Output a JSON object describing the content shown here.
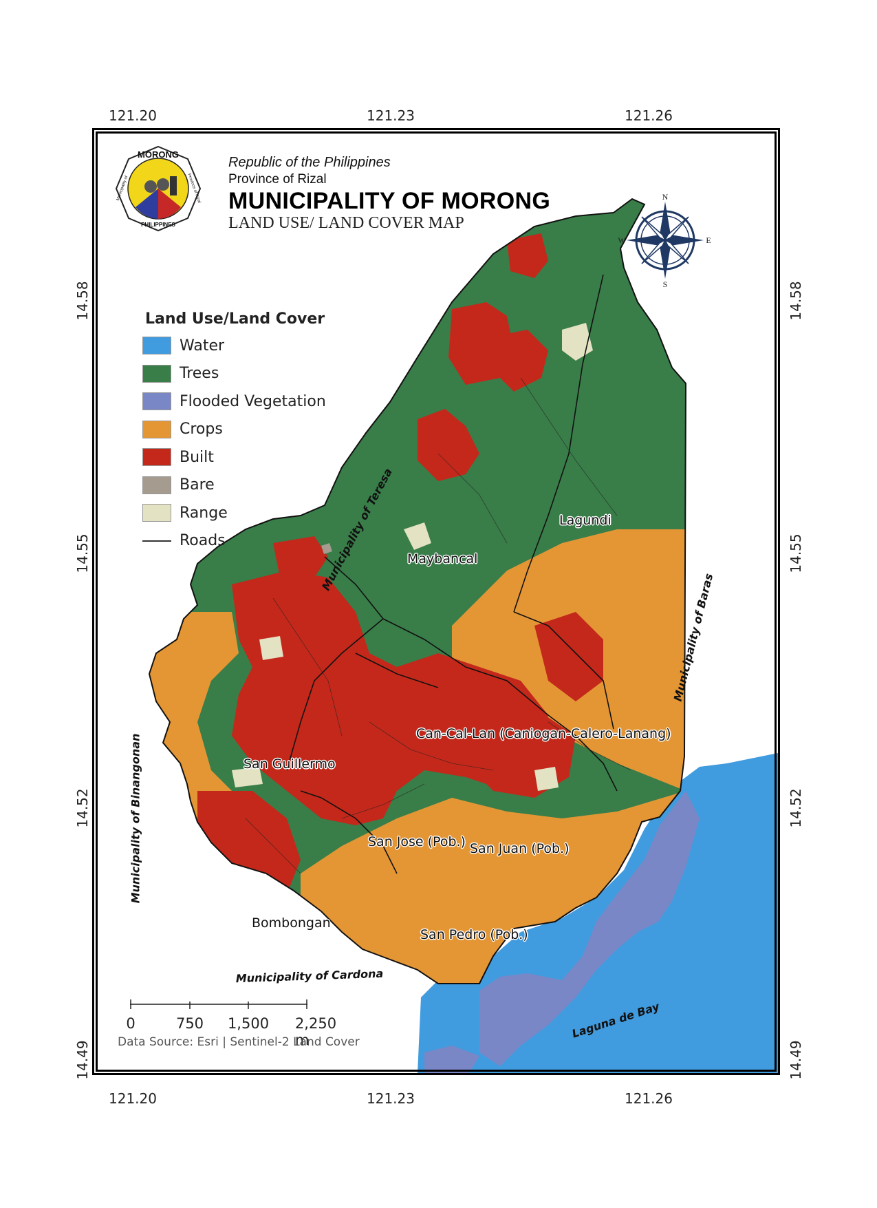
{
  "header": {
    "republic": "Republic of the Philippines",
    "province": "Province of Rizal",
    "municipality": "MUNICIPALITY OF MORONG",
    "map_title": "LAND USE/ LAND COVER MAP"
  },
  "seal": {
    "top_text": "MORONG",
    "left_text": "Municipality of",
    "right_text": "Province of Rizal",
    "bottom_text": "PHILIPPINES"
  },
  "compass": {
    "n": "N",
    "s": "S",
    "e": "E",
    "w": "W"
  },
  "coordinates": {
    "top": [
      "121.20",
      "121.23",
      "121.26"
    ],
    "bottom": [
      "121.20",
      "121.23",
      "121.26"
    ],
    "left": [
      "14.58",
      "14.55",
      "14.52",
      "14.49"
    ],
    "right": [
      "14.58",
      "14.55",
      "14.52",
      "14.49"
    ]
  },
  "legend": {
    "title": "Land Use/Land Cover",
    "items": [
      {
        "label": "Water",
        "color": "#419bdf"
      },
      {
        "label": "Trees",
        "color": "#397d49"
      },
      {
        "label": "Flooded Vegetation",
        "color": "#7a87c6"
      },
      {
        "label": "Crops",
        "color": "#e49635"
      },
      {
        "label": "Built",
        "color": "#c4281b"
      },
      {
        "label": "Bare",
        "color": "#a59b8f"
      },
      {
        "label": "Range",
        "color": "#e3e2c3"
      }
    ],
    "roads_label": "Roads"
  },
  "barangays": {
    "lagundi": "Lagundi",
    "maybancal": "Maybancal",
    "cancallan": "Can-Cal-Lan (Caniogan-Calero-Lanang)",
    "san_guillermo": "San Guillermo",
    "san_jose": "San Jose (Pob.)",
    "san_juan": "San Juan (Pob.)",
    "bombongan": "Bombongan",
    "san_pedro": "San Pedro (Pob.)"
  },
  "neighbors": {
    "teresa": "Municipality of Teresa",
    "baras": "Municipality of Baras",
    "binangonan": "Municipality of Binangonan",
    "cardona": "Municipality of Cardona",
    "laguna": "Laguna de Bay"
  },
  "scale": {
    "labels": [
      "0",
      "750",
      "1,500",
      "2,250 m"
    ]
  },
  "source": "Data Source: Esri | Sentinel-2 Land Cover"
}
